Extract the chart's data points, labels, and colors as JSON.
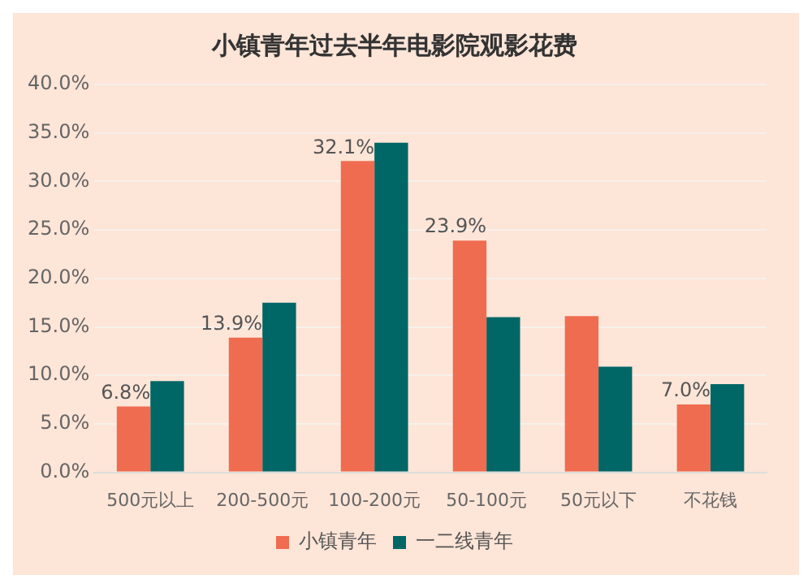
{
  "chart_data": {
    "type": "bar",
    "title": "小镇青年过去半年电影院观影花费",
    "categories": [
      "500元以上",
      "200-500元",
      "100-200元",
      "50-100元",
      "50元以下",
      "不花钱"
    ],
    "series": [
      {
        "name": "小镇青年",
        "color": "#ef6c50",
        "values": [
          6.8,
          13.9,
          32.1,
          23.9,
          16.1,
          7.0
        ],
        "value_labels": [
          "6.8%",
          "13.9%",
          "32.1%",
          "23.9%",
          null,
          "7.0%"
        ]
      },
      {
        "name": "一二线青年",
        "color": "#006666",
        "values": [
          9.4,
          17.5,
          34.0,
          16.0,
          10.9,
          9.1
        ]
      }
    ],
    "ylim": [
      0,
      40
    ],
    "yticks": [
      {
        "value": 0,
        "label": "0.0%"
      },
      {
        "value": 5,
        "label": "5.0%"
      },
      {
        "value": 10,
        "label": "10.0%"
      },
      {
        "value": 15,
        "label": "15.0%"
      },
      {
        "value": 20,
        "label": "20.0%"
      },
      {
        "value": 25,
        "label": "25.0%"
      },
      {
        "value": 30,
        "label": "30.0%"
      },
      {
        "value": 35,
        "label": "35.0%"
      },
      {
        "value": 40,
        "label": "40.0%"
      }
    ],
    "grid": "y",
    "legend": "bottom"
  }
}
